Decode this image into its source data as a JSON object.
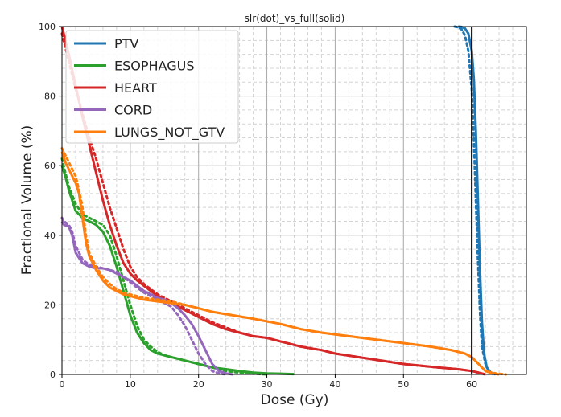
{
  "chart_data": {
    "type": "line",
    "title": "slr(dot)_vs_full(solid)",
    "xlabel": "Dose (Gy)",
    "ylabel": "Fractional Volume (%)",
    "xlim": [
      0,
      68
    ],
    "ylim": [
      0,
      100
    ],
    "x_ticks": [
      0,
      10,
      20,
      30,
      40,
      50,
      60
    ],
    "y_ticks": [
      0,
      20,
      40,
      60,
      80,
      100
    ],
    "grid": "major and minor",
    "legend_position": "top-left",
    "vertical_line": {
      "x": 60,
      "color": "#000000"
    },
    "line_styles": {
      "solid": "full",
      "dotted": "slr"
    },
    "series": [
      {
        "name": "PTV",
        "color": "#1f77b4",
        "solid": [
          [
            58,
            100
          ],
          [
            58.5,
            99.9
          ],
          [
            59,
            99.5
          ],
          [
            59.5,
            98
          ],
          [
            60,
            93
          ],
          [
            60.3,
            85
          ],
          [
            60.6,
            70
          ],
          [
            60.9,
            50
          ],
          [
            61.2,
            30
          ],
          [
            61.5,
            15
          ],
          [
            61.8,
            6
          ],
          [
            62.2,
            2
          ],
          [
            62.8,
            0.5
          ],
          [
            63.5,
            0
          ]
        ],
        "dotted": [
          [
            57.5,
            100
          ],
          [
            58,
            99.8
          ],
          [
            58.5,
            99.2
          ],
          [
            59,
            97.5
          ],
          [
            59.5,
            93
          ],
          [
            60,
            82
          ],
          [
            60.3,
            68
          ],
          [
            60.6,
            50
          ],
          [
            60.9,
            33
          ],
          [
            61.2,
            18
          ],
          [
            61.5,
            8
          ],
          [
            62,
            3
          ],
          [
            62.6,
            0.5
          ],
          [
            63.2,
            0
          ]
        ]
      },
      {
        "name": "ESOPHAGUS",
        "color": "#2ca02c",
        "solid": [
          [
            0,
            60
          ],
          [
            0.5,
            57
          ],
          [
            1,
            53
          ],
          [
            2,
            47
          ],
          [
            3,
            45
          ],
          [
            4,
            44
          ],
          [
            5,
            43
          ],
          [
            6,
            41
          ],
          [
            7,
            37
          ],
          [
            8,
            31
          ],
          [
            9,
            24
          ],
          [
            10,
            17
          ],
          [
            11,
            12
          ],
          [
            12,
            9
          ],
          [
            13,
            7
          ],
          [
            14,
            6
          ],
          [
            15,
            5.5
          ],
          [
            16,
            5
          ],
          [
            17,
            4.5
          ],
          [
            18,
            4
          ],
          [
            19,
            3.5
          ],
          [
            20,
            3
          ],
          [
            22,
            2
          ],
          [
            24,
            1.5
          ],
          [
            26,
            1
          ],
          [
            28,
            0.5
          ],
          [
            30,
            0.3
          ],
          [
            32,
            0.2
          ],
          [
            34,
            0.1
          ]
        ],
        "dotted": [
          [
            0,
            62
          ],
          [
            0.5,
            58
          ],
          [
            1,
            54
          ],
          [
            2,
            49
          ],
          [
            3,
            46
          ],
          [
            4,
            45
          ],
          [
            5,
            44
          ],
          [
            6,
            43
          ],
          [
            7,
            40
          ],
          [
            8,
            34
          ],
          [
            9,
            27
          ],
          [
            10,
            20
          ],
          [
            11,
            14
          ],
          [
            12,
            10
          ],
          [
            13,
            8
          ],
          [
            14,
            6.5
          ],
          [
            15,
            5.5
          ],
          [
            16,
            5
          ],
          [
            17,
            4.5
          ],
          [
            18,
            4
          ],
          [
            19,
            3.5
          ],
          [
            20,
            3
          ],
          [
            22,
            2
          ],
          [
            24,
            1
          ],
          [
            26,
            0.5
          ],
          [
            28,
            0.2
          ],
          [
            30,
            0
          ]
        ]
      },
      {
        "name": "HEART",
        "color": "#d62728",
        "solid": [
          [
            0,
            100
          ],
          [
            1,
            92
          ],
          [
            2,
            83
          ],
          [
            3,
            74
          ],
          [
            4,
            66
          ],
          [
            5,
            58
          ],
          [
            6,
            50
          ],
          [
            7,
            43
          ],
          [
            8,
            37
          ],
          [
            9,
            32
          ],
          [
            10,
            29
          ],
          [
            11,
            27
          ],
          [
            12,
            25.5
          ],
          [
            13,
            24
          ],
          [
            14,
            22.5
          ],
          [
            15,
            21.5
          ],
          [
            16,
            20.5
          ],
          [
            17,
            19.5
          ],
          [
            18,
            18.5
          ],
          [
            19,
            17.5
          ],
          [
            20,
            16.5
          ],
          [
            21,
            15.5
          ],
          [
            22,
            14.5
          ],
          [
            24,
            13
          ],
          [
            26,
            12
          ],
          [
            28,
            11
          ],
          [
            30,
            10.5
          ],
          [
            32,
            9.5
          ],
          [
            35,
            8
          ],
          [
            38,
            7
          ],
          [
            40,
            6
          ],
          [
            45,
            4.5
          ],
          [
            50,
            3
          ],
          [
            55,
            2
          ],
          [
            58,
            1.5
          ],
          [
            60,
            1
          ],
          [
            61,
            0.5
          ],
          [
            62,
            0
          ]
        ],
        "dotted": [
          [
            0,
            98
          ],
          [
            1,
            90
          ],
          [
            2,
            82
          ],
          [
            3,
            75
          ],
          [
            4,
            68
          ],
          [
            5,
            62
          ],
          [
            6,
            55
          ],
          [
            7,
            48
          ],
          [
            8,
            42
          ],
          [
            9,
            36
          ],
          [
            10,
            31
          ],
          [
            11,
            28
          ],
          [
            12,
            26
          ],
          [
            13,
            24.5
          ],
          [
            14,
            23
          ],
          [
            15,
            22
          ],
          [
            16,
            21
          ],
          [
            17,
            20
          ],
          [
            18,
            19
          ],
          [
            19,
            18
          ],
          [
            20,
            17
          ],
          [
            21,
            16
          ],
          [
            22,
            15
          ],
          [
            24,
            13.5
          ],
          [
            26,
            12
          ],
          [
            28,
            11
          ],
          [
            30,
            10.5
          ],
          [
            32,
            9.5
          ],
          [
            35,
            8
          ],
          [
            38,
            7
          ],
          [
            40,
            6
          ],
          [
            45,
            4.5
          ],
          [
            50,
            3
          ],
          [
            55,
            2
          ],
          [
            58,
            1.5
          ],
          [
            60,
            1
          ],
          [
            61,
            0.5
          ],
          [
            62,
            0
          ]
        ]
      },
      {
        "name": "CORD",
        "color": "#9467bd",
        "solid": [
          [
            0,
            44
          ],
          [
            0.3,
            43
          ],
          [
            1,
            42.5
          ],
          [
            1.5,
            40
          ],
          [
            2,
            35
          ],
          [
            3,
            32
          ],
          [
            4,
            31
          ],
          [
            5,
            30.5
          ],
          [
            6,
            30.5
          ],
          [
            7,
            30
          ],
          [
            8,
            29
          ],
          [
            9,
            28
          ],
          [
            10,
            27
          ],
          [
            11,
            25.5
          ],
          [
            12,
            24
          ],
          [
            13,
            23
          ],
          [
            14,
            22
          ],
          [
            15,
            21.5
          ],
          [
            16,
            20.5
          ],
          [
            17,
            19
          ],
          [
            18,
            17
          ],
          [
            19,
            14.5
          ],
          [
            20,
            11
          ],
          [
            21,
            7
          ],
          [
            22,
            3
          ],
          [
            23,
            1
          ],
          [
            24,
            0.3
          ],
          [
            25,
            0
          ]
        ],
        "dotted": [
          [
            0,
            45
          ],
          [
            0.3,
            44
          ],
          [
            1,
            43
          ],
          [
            1.5,
            41
          ],
          [
            2,
            37
          ],
          [
            3,
            33
          ],
          [
            4,
            31.5
          ],
          [
            5,
            31
          ],
          [
            6,
            30.5
          ],
          [
            7,
            30
          ],
          [
            8,
            29.5
          ],
          [
            9,
            28
          ],
          [
            10,
            26.5
          ],
          [
            11,
            25
          ],
          [
            12,
            23.5
          ],
          [
            13,
            22.5
          ],
          [
            14,
            21.5
          ],
          [
            15,
            20.5
          ],
          [
            16,
            19.5
          ],
          [
            17,
            17
          ],
          [
            18,
            14
          ],
          [
            19,
            10
          ],
          [
            20,
            6
          ],
          [
            21,
            3
          ],
          [
            22,
            1
          ],
          [
            23,
            0.3
          ],
          [
            24,
            0
          ]
        ]
      },
      {
        "name": "LUNGS_NOT_GTV",
        "color": "#ff7f0e",
        "solid": [
          [
            0,
            64
          ],
          [
            0.5,
            61
          ],
          [
            1,
            59
          ],
          [
            2,
            55
          ],
          [
            2.5,
            52
          ],
          [
            3,
            45
          ],
          [
            3.5,
            38
          ],
          [
            4,
            34
          ],
          [
            5,
            30
          ],
          [
            6,
            27
          ],
          [
            7,
            25
          ],
          [
            8,
            24
          ],
          [
            9,
            23
          ],
          [
            10,
            22.5
          ],
          [
            12,
            21.5
          ],
          [
            14,
            21
          ],
          [
            16,
            20.5
          ],
          [
            18,
            20
          ],
          [
            20,
            19
          ],
          [
            22,
            18
          ],
          [
            25,
            17
          ],
          [
            28,
            16
          ],
          [
            32,
            14.5
          ],
          [
            35,
            13
          ],
          [
            38,
            12
          ],
          [
            42,
            11
          ],
          [
            46,
            10
          ],
          [
            50,
            9
          ],
          [
            54,
            8
          ],
          [
            57,
            7
          ],
          [
            59,
            6
          ],
          [
            60,
            5
          ],
          [
            61,
            3
          ],
          [
            62,
            1
          ],
          [
            63,
            0.3
          ],
          [
            64,
            0
          ]
        ],
        "dotted": [
          [
            0,
            65
          ],
          [
            0.5,
            63
          ],
          [
            1,
            61
          ],
          [
            2,
            57
          ],
          [
            2.5,
            53
          ],
          [
            3,
            48
          ],
          [
            3.5,
            40
          ],
          [
            4,
            35
          ],
          [
            5,
            31
          ],
          [
            6,
            28
          ],
          [
            7,
            26
          ],
          [
            8,
            24.5
          ],
          [
            9,
            23.5
          ],
          [
            10,
            23
          ],
          [
            12,
            22
          ],
          [
            14,
            21.5
          ],
          [
            16,
            21
          ],
          [
            18,
            20
          ],
          [
            20,
            19
          ],
          [
            22,
            18
          ],
          [
            25,
            17
          ],
          [
            28,
            16
          ],
          [
            32,
            14.5
          ],
          [
            35,
            13
          ],
          [
            38,
            12
          ],
          [
            42,
            11
          ],
          [
            46,
            10
          ],
          [
            50,
            9
          ],
          [
            54,
            8
          ],
          [
            57,
            7
          ],
          [
            59,
            6
          ],
          [
            60,
            5
          ],
          [
            61,
            3
          ],
          [
            62,
            1
          ],
          [
            63.5,
            0.3
          ],
          [
            65,
            0
          ]
        ]
      }
    ]
  }
}
